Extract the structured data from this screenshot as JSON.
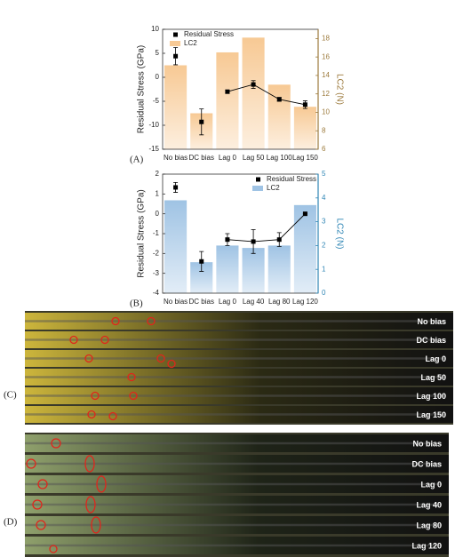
{
  "chart_data": [
    {
      "type": "combo",
      "panel_label": "(A)",
      "categories": [
        "No bias",
        "DC bias",
        "Lag 0",
        "Lag 50",
        "Lag 100",
        "Lag 150"
      ],
      "ylabel": "Residual Stress (GPa)",
      "y2label": "LC2 (N)",
      "ylim": [
        -15,
        10
      ],
      "yticks": [
        -15,
        -10,
        -5,
        0,
        5,
        10
      ],
      "y2lim": [
        6,
        19
      ],
      "y2ticks": [
        6,
        8,
        10,
        12,
        14,
        16,
        18
      ],
      "y2_color": "#9c7a3c",
      "legend": "upper left",
      "series": [
        {
          "name": "Residual Stress",
          "type": "scatter",
          "color": "#000000",
          "values": [
            4.4,
            -9.3,
            -3,
            -1.5,
            -4.6,
            -5.7
          ],
          "errors": [
            1.8,
            2.7,
            0.3,
            0.8,
            0.4,
            0.8
          ],
          "connect": [
            false,
            false,
            true,
            true,
            true,
            true
          ]
        },
        {
          "name": "LC2",
          "type": "bar",
          "axis": "y2",
          "color": "#f7c994",
          "values": [
            15.1,
            9.9,
            16.5,
            18.1,
            13,
            10.6
          ]
        }
      ]
    },
    {
      "type": "combo",
      "panel_label": "(B)",
      "categories": [
        "No bias",
        "DC bias",
        "Lag 0",
        "Lag 40",
        "Lag 80",
        "Lag 120"
      ],
      "ylabel": "Residual Stress (GPa)",
      "y2label": "LC2 (N)",
      "ylim": [
        -4,
        2
      ],
      "yticks": [
        -4,
        -3,
        -2,
        -1,
        0,
        1,
        2
      ],
      "y2lim": [
        0,
        5
      ],
      "y2ticks": [
        0,
        1,
        2,
        3,
        4,
        5
      ],
      "y2_color": "#2f86b5",
      "legend": "upper right",
      "series": [
        {
          "name": "Residual Stress",
          "type": "scatter",
          "color": "#000000",
          "values": [
            1.33,
            -2.4,
            -1.3,
            -1.4,
            -1.3,
            0
          ],
          "errors": [
            0.25,
            0.5,
            0.3,
            0.6,
            0.35,
            0
          ],
          "connect": [
            false,
            false,
            true,
            true,
            true,
            true
          ]
        },
        {
          "name": "LC2",
          "type": "bar",
          "axis": "y2",
          "color": "#9fc3e4",
          "values": [
            3.9,
            1.3,
            2,
            1.9,
            2,
            3.7
          ]
        }
      ]
    }
  ],
  "images": [
    {
      "panel_label": "(C)",
      "strips": [
        "No bias",
        "DC bias",
        "Lag 0",
        "Lag 50",
        "Lag 100",
        "Lag 150"
      ]
    },
    {
      "panel_label": "(D)",
      "strips": [
        "No bias",
        "DC bias",
        "Lag 0",
        "Lag 40",
        "Lag 80",
        "Lag 120"
      ]
    }
  ]
}
